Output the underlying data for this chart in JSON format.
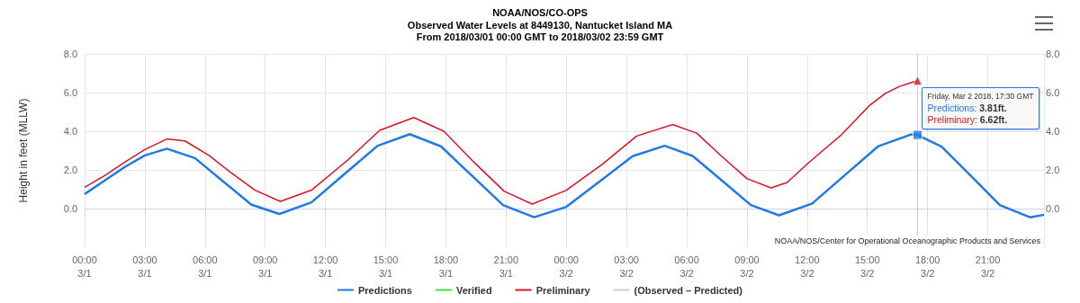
{
  "chart_data": {
    "type": "line",
    "title": "NOAA/NOS/CO-OPS",
    "subtitle": "Observed Water Levels at 8449130, Nantucket Island MA\nFrom 2018/03/01 00:00 GMT to 2018/03/02 23:59 GMT",
    "ylabel": "Height in feet (MLLW)",
    "xlim": [
      "2018-03-01T00:00",
      "2018-03-02T23:48"
    ],
    "xticks": [
      {
        "value": "2018-03-01T00:00",
        "label": "00:00\n3/1"
      },
      {
        "value": "2018-03-01T03:00",
        "label": "03:00\n3/1"
      },
      {
        "value": "2018-03-01T06:00",
        "label": "06:00\n3/1"
      },
      {
        "value": "2018-03-01T09:00",
        "label": "09:00\n3/1"
      },
      {
        "value": "2018-03-01T12:00",
        "label": "12:00\n3/1"
      },
      {
        "value": "2018-03-01T15:00",
        "label": "15:00\n3/1"
      },
      {
        "value": "2018-03-01T18:00",
        "label": "18:00\n3/1"
      },
      {
        "value": "2018-03-01T21:00",
        "label": "21:00\n3/1"
      },
      {
        "value": "2018-03-02T00:00",
        "label": "00:00\n3/2"
      },
      {
        "value": "2018-03-02T03:00",
        "label": "03:00\n3/2"
      },
      {
        "value": "2018-03-02T06:00",
        "label": "06:00\n3/2"
      },
      {
        "value": "2018-03-02T09:00",
        "label": "09:00\n3/2"
      },
      {
        "value": "2018-03-02T12:00",
        "label": "12:00\n3/2"
      },
      {
        "value": "2018-03-02T15:00",
        "label": "15:00\n3/2"
      },
      {
        "value": "2018-03-02T18:00",
        "label": "18:00\n3/2"
      },
      {
        "value": "2018-03-02T21:00",
        "label": "21:00\n3/2"
      }
    ],
    "ylim": [
      -2,
      8
    ],
    "yticks": [
      {
        "value": 0,
        "label": "0.0"
      },
      {
        "value": 2,
        "label": "2.0"
      },
      {
        "value": 4,
        "label": "4.0"
      },
      {
        "value": 6,
        "label": "6.0"
      },
      {
        "value": 8,
        "label": "8.0"
      }
    ],
    "y2lim": [
      -2,
      8
    ],
    "y2ticks": [
      {
        "value": 0,
        "label": "0.0"
      },
      {
        "value": 2,
        "label": "2.0"
      },
      {
        "value": 4,
        "label": "4.0"
      },
      {
        "value": 6,
        "label": "6.0"
      },
      {
        "value": 8,
        "label": "8.0"
      }
    ],
    "grid": true,
    "legend": "bottom",
    "marker": "none",
    "series": [
      {
        "name": "Predictions",
        "color": "#1f7ae6",
        "x": [
          "2018-03-01T00:00",
          "2018-03-01T01:00",
          "2018-03-01T02:00",
          "2018-03-01T03:00",
          "2018-03-01T04:06",
          "2018-03-01T05:30",
          "2018-03-01T06:54",
          "2018-03-01T08:18",
          "2018-03-01T09:42",
          "2018-03-01T11:18",
          "2018-03-01T12:57",
          "2018-03-01T14:36",
          "2018-03-01T16:12",
          "2018-03-01T17:45",
          "2018-03-01T19:18",
          "2018-03-01T20:51",
          "2018-03-01T22:24",
          "2018-03-02T00:00",
          "2018-03-02T01:39",
          "2018-03-02T03:18",
          "2018-03-02T04:54",
          "2018-03-02T06:18",
          "2018-03-02T07:45",
          "2018-03-02T09:12",
          "2018-03-02T10:36",
          "2018-03-02T12:15",
          "2018-03-02T13:54",
          "2018-03-02T15:33",
          "2018-03-02T17:12",
          "2018-03-02T17:30",
          "2018-03-02T18:42",
          "2018-03-02T20:09",
          "2018-03-02T21:36",
          "2018-03-02T23:06",
          "2018-03-02T23:48"
        ],
        "values": [
          0.75,
          1.45,
          2.15,
          2.75,
          3.1,
          2.61,
          1.41,
          0.21,
          -0.28,
          0.32,
          1.79,
          3.25,
          3.85,
          3.22,
          1.7,
          0.18,
          -0.45,
          0.09,
          1.4,
          2.71,
          3.25,
          2.72,
          1.45,
          0.18,
          -0.35,
          0.26,
          1.75,
          3.23,
          3.84,
          3.81,
          3.2,
          1.7,
          0.18,
          -0.45,
          -0.32
        ]
      },
      {
        "name": "Verified",
        "color": "#44dd44"
      },
      {
        "name": "Preliminary",
        "color": "#dd1122",
        "x": [
          "2018-03-01T00:00",
          "2018-03-01T01:00",
          "2018-03-01T02:00",
          "2018-03-01T03:00",
          "2018-03-01T04:06",
          "2018-03-01T05:00",
          "2018-03-01T06:12",
          "2018-03-01T07:18",
          "2018-03-01T08:30",
          "2018-03-01T09:45",
          "2018-03-01T11:18",
          "2018-03-01T13:06",
          "2018-03-01T14:42",
          "2018-03-01T16:24",
          "2018-03-01T17:54",
          "2018-03-01T19:24",
          "2018-03-01T20:54",
          "2018-03-01T22:18",
          "2018-03-02T00:00",
          "2018-03-02T01:48",
          "2018-03-02T03:30",
          "2018-03-02T05:18",
          "2018-03-02T06:30",
          "2018-03-02T07:45",
          "2018-03-02T09:00",
          "2018-03-02T10:12",
          "2018-03-02T11:00",
          "2018-03-02T12:00",
          "2018-03-02T13:00",
          "2018-03-02T13:42",
          "2018-03-02T15:06",
          "2018-03-02T15:54",
          "2018-03-02T16:36",
          "2018-03-02T17:30"
        ],
        "values": [
          1.1,
          1.7,
          2.4,
          3.05,
          3.6,
          3.5,
          2.75,
          1.85,
          0.95,
          0.37,
          0.95,
          2.5,
          4.05,
          4.71,
          4.0,
          2.4,
          0.9,
          0.23,
          0.95,
          2.3,
          3.75,
          4.35,
          3.9,
          2.7,
          1.55,
          1.07,
          1.35,
          2.3,
          3.2,
          3.81,
          5.33,
          5.96,
          6.32,
          6.62
        ]
      },
      {
        "name": "(Observed – Predicted)",
        "color": "#cccccc"
      },
      {
        "type": "scatter",
        "marker": "square",
        "color": "#1f7ae6",
        "x": [
          "2018-03-02T17:30"
        ],
        "values": [
          3.81
        ]
      },
      {
        "type": "scatter",
        "marker": "triangle",
        "color": "#dd1122",
        "x": [
          "2018-03-02T17:30"
        ],
        "values": [
          6.62
        ]
      }
    ],
    "ref_lines": [
      {
        "axis": "x",
        "value": "2018-03-02T17:30",
        "color": "#cccccc"
      }
    ],
    "annotations": [
      {
        "text": "Friday, Mar 2 2018, 17:30 GMT\nPredictions: 3.81ft.\nPreliminary: 6.62ft.",
        "x": "2018-03-02T17:30",
        "y": 3.81
      },
      "NOAA/NOS/Center for Operational Oceanographic Products and Services"
    ]
  }
}
